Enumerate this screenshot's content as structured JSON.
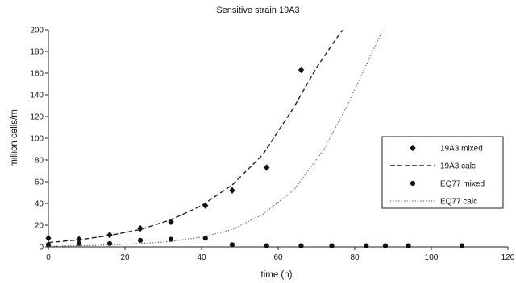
{
  "chart_data": {
    "type": "scatter",
    "title": "Sensitive strain 19A3",
    "xlabel": "time (h)",
    "ylabel": "million cells/m",
    "xlim": [
      0,
      120
    ],
    "ylim": [
      0,
      200
    ],
    "xticks": [
      0,
      20,
      40,
      60,
      80,
      100,
      120
    ],
    "yticks": [
      0,
      20,
      40,
      60,
      80,
      100,
      120,
      140,
      160,
      180,
      200
    ],
    "grid": false,
    "legend_position": "right",
    "series": [
      {
        "name": "19A3 mixed",
        "kind": "scatter",
        "marker": "diamond",
        "color": "#111111",
        "x": [
          0,
          8,
          16,
          24,
          32,
          41,
          48,
          57,
          66
        ],
        "y": [
          8,
          7,
          11,
          17,
          23,
          38,
          52,
          73,
          163
        ]
      },
      {
        "name": "19A3 calc",
        "kind": "line",
        "dash": "dashed",
        "color": "#222222",
        "x": [
          0,
          8,
          16,
          24,
          32,
          40,
          48,
          56,
          64,
          70,
          76,
          78
        ],
        "y": [
          4,
          6.5,
          10.5,
          16,
          25,
          38,
          57,
          85,
          128,
          165,
          196,
          205
        ]
      },
      {
        "name": "EQ77 mixed",
        "kind": "scatter",
        "marker": "circle",
        "color": "#111111",
        "x": [
          0,
          8,
          16,
          24,
          32,
          41,
          48,
          57,
          66,
          74,
          83,
          88,
          94,
          108
        ],
        "y": [
          2,
          3,
          3,
          6,
          7,
          8,
          2,
          1,
          1,
          1,
          1,
          1,
          1,
          1
        ]
      },
      {
        "name": "EQ77 calc",
        "kind": "line",
        "dash": "dotted",
        "color": "#444444",
        "x": [
          0,
          8,
          16,
          24,
          32,
          40,
          48,
          56,
          64,
          72,
          78,
          84,
          88
        ],
        "y": [
          0.5,
          1,
          1.8,
          3,
          5,
          9,
          16,
          30,
          52,
          90,
          130,
          175,
          205
        ]
      }
    ]
  }
}
